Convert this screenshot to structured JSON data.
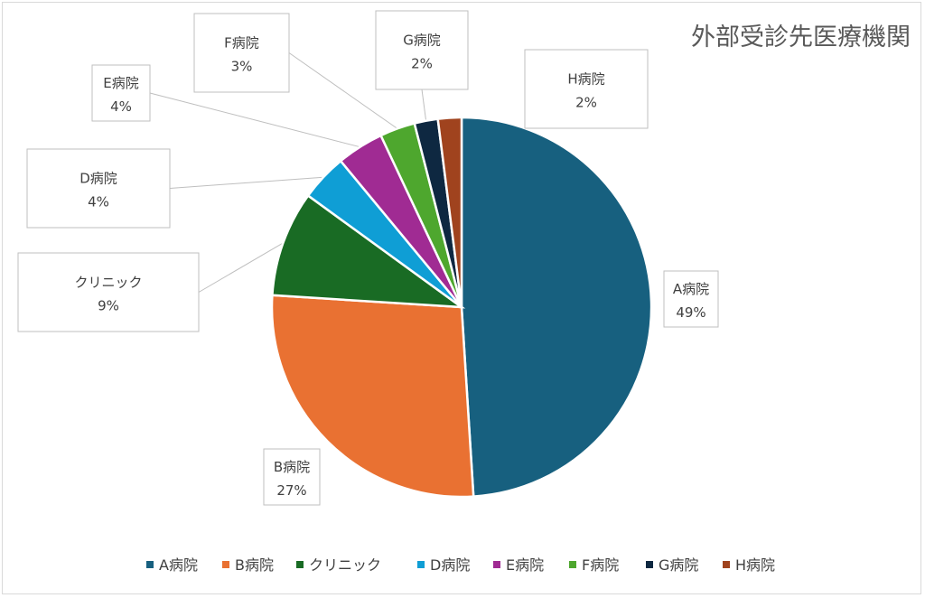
{
  "chart_data": {
    "type": "pie",
    "title": "外部受診先医療機関",
    "categories": [
      "A病院",
      "B病院",
      "クリニック",
      "D病院",
      "E病院",
      "F病院",
      "G病院",
      "H病院"
    ],
    "values": [
      49,
      27,
      9,
      4,
      4,
      3,
      2,
      2
    ],
    "value_labels": [
      "49%",
      "27%",
      "9%",
      "4%",
      "4%",
      "3%",
      "2%",
      "2%"
    ],
    "colors": [
      "#17607f",
      "#e97132",
      "#196b24",
      "#0f9ed5",
      "#a02b93",
      "#4ea72e",
      "#0e2841",
      "#a0431e"
    ],
    "legend": "bottom",
    "data_labels": "callouts"
  }
}
